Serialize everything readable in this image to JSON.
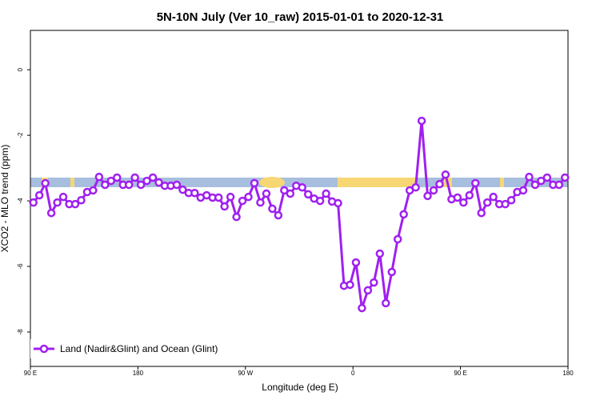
{
  "chart_data": {
    "type": "line",
    "title": "5N-10N July (Ver 10_raw)   2015-01-01 to 2020-12-31",
    "x_label": "Longitude (deg E)",
    "y_label": "XCO2 - MLO trend (ppm)",
    "xlim": [
      90,
      540
    ],
    "xticks": [
      {
        "value": 90,
        "label": "90 E"
      },
      180,
      {
        "value": 270,
        "label": "90 W"
      },
      {
        "value": 360,
        "label": "0"
      },
      {
        "value": 450,
        "label": "90 E"
      },
      {
        "value": 540,
        "label": "180"
      }
    ],
    "ylim": [
      -9.05,
      1.2
    ],
    "yticks": [
      0,
      -2,
      -4,
      -6,
      -8
    ],
    "legend": "bottom-left",
    "x": [
      92.5,
      97.5,
      102.5,
      107.5,
      112.5,
      117.5,
      122.5,
      127.5,
      132.5,
      137.5,
      142.5,
      147.5,
      152.5,
      157.5,
      162.5,
      167.5,
      172.5,
      177.5,
      182.5,
      187.5,
      192.5,
      197.5,
      202.5,
      207.5,
      212.5,
      217.5,
      222.5,
      227.5,
      232.5,
      237.5,
      242.5,
      247.5,
      252.5,
      257.5,
      262.5,
      267.5,
      272.5,
      277.5,
      282.5,
      287.5,
      292.5,
      297.5,
      302.5,
      307.5,
      312.5,
      317.5,
      322.5,
      327.5,
      332.5,
      337.5,
      342.5,
      347.5,
      352.5,
      357.5,
      362.5,
      367.5,
      372.5,
      377.5,
      382.5,
      387.5,
      392.5,
      397.5,
      402.5,
      407.5,
      412.5,
      417.5,
      422.5,
      427.5,
      432.5,
      437.5,
      442.5,
      447.5,
      452.5,
      457.5,
      462.5,
      467.5,
      472.5,
      477.5,
      482.5,
      487.5,
      492.5,
      497.5,
      502.5,
      507.5,
      512.5,
      517.5,
      522.5,
      527.5,
      532.5,
      537.5
    ],
    "series": [
      {
        "name": "Land (Nadir&Glint) and Ocean (Glint)",
        "color": "#a020f0",
        "values": [
          -4.05,
          -3.83,
          -3.46,
          -4.37,
          -4.05,
          -3.88,
          -4.1,
          -4.1,
          -3.98,
          -3.73,
          -3.68,
          -3.27,
          -3.51,
          -3.39,
          -3.29,
          -3.51,
          -3.51,
          -3.29,
          -3.51,
          -3.39,
          -3.29,
          -3.44,
          -3.54,
          -3.54,
          -3.51,
          -3.66,
          -3.76,
          -3.76,
          -3.9,
          -3.83,
          -3.9,
          -3.9,
          -4.17,
          -3.88,
          -4.49,
          -4.0,
          -3.88,
          -3.46,
          -4.05,
          -3.78,
          -4.24,
          -4.44,
          -3.68,
          -3.78,
          -3.54,
          -3.59,
          -3.8,
          -3.93,
          -4.0,
          -3.78,
          -4.02,
          -4.07,
          -6.59,
          -6.56,
          -5.88,
          -7.27,
          -6.73,
          -6.49,
          -5.61,
          -7.12,
          -6.17,
          -5.17,
          -4.41,
          -3.68,
          -3.59,
          -1.56,
          -3.85,
          -3.68,
          -3.49,
          -3.2,
          -3.95,
          -3.9,
          -4.05,
          -3.83,
          -3.46,
          -4.37,
          -4.05,
          -3.88,
          -4.1,
          -4.1,
          -3.98,
          -3.73,
          -3.68,
          -3.27,
          -3.51,
          -3.39,
          -3.29,
          -3.51,
          -3.51,
          -3.29
        ]
      }
    ]
  }
}
